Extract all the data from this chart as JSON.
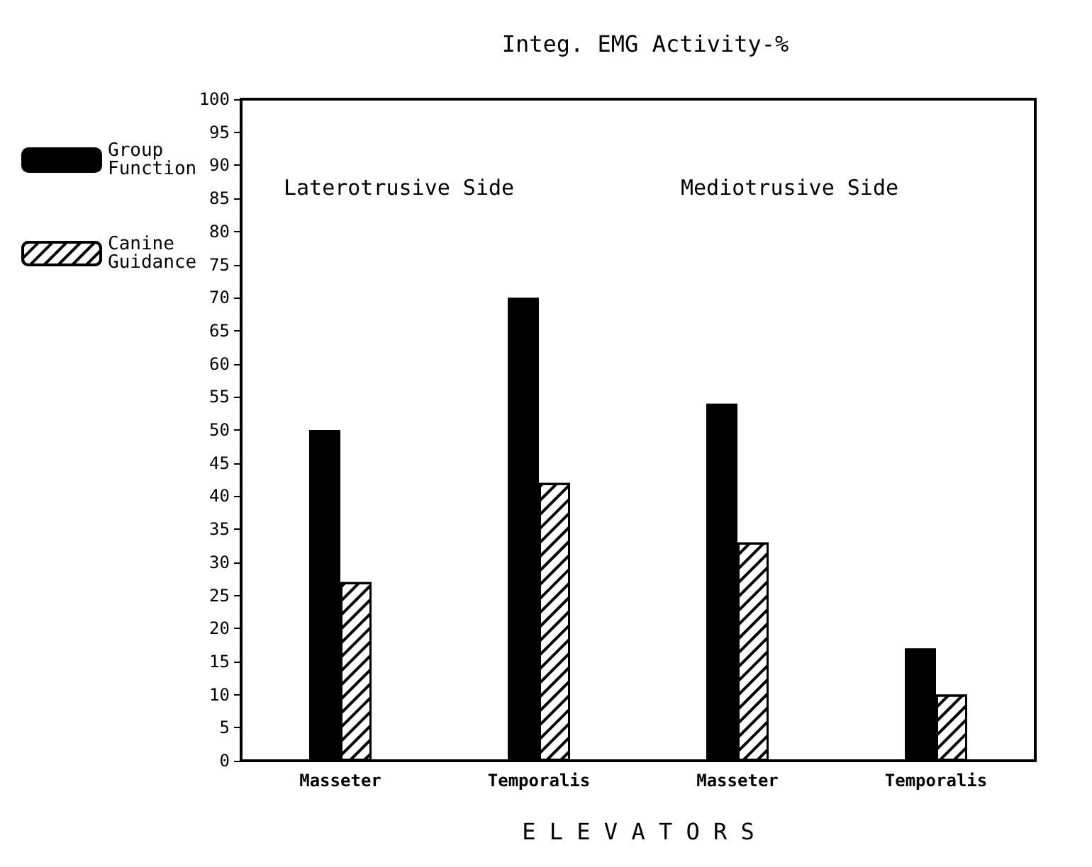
{
  "chart_data": {
    "type": "bar",
    "title": "Integ. EMG Activity-%",
    "xlabel": "E L E V A T O R S",
    "categories": [
      "Masseter",
      "Temporalis",
      "Masseter",
      "Temporalis"
    ],
    "series": [
      {
        "name": "Group Function",
        "color": "#000000",
        "values": [
          50,
          70,
          54,
          17
        ]
      },
      {
        "name": "Canine Guidance",
        "color": "#ffffff",
        "values": [
          27,
          42,
          33,
          10
        ]
      }
    ],
    "ylim": [
      0,
      100
    ],
    "yticks": [
      0,
      5,
      10,
      15,
      20,
      25,
      30,
      35,
      40,
      45,
      50,
      55,
      60,
      65,
      70,
      75,
      80,
      85,
      90,
      95,
      100
    ],
    "annotations": [
      "Laterotrusive Side",
      "Mediotrusive Side"
    ],
    "grid": false,
    "legend": "left"
  }
}
